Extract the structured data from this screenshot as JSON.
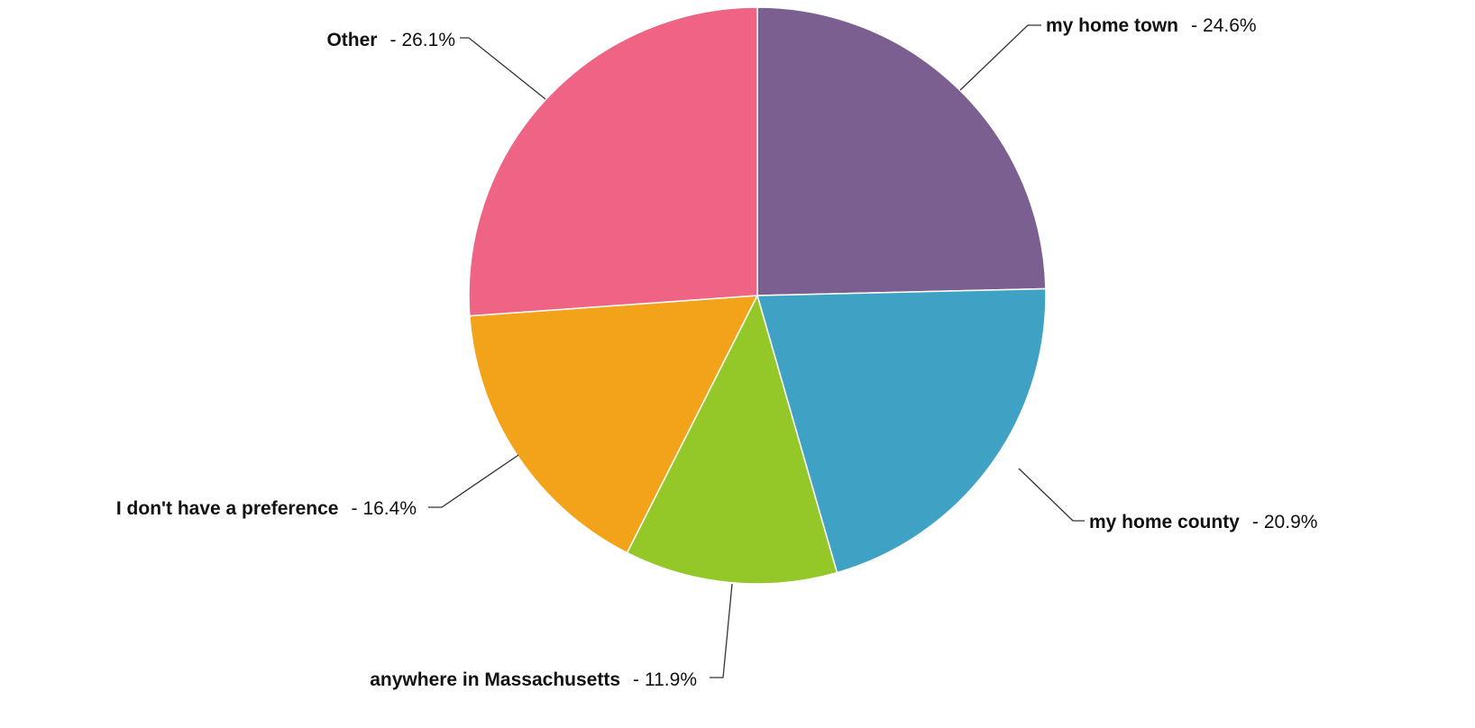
{
  "chart_data": {
    "type": "pie",
    "categories": [
      "my home town",
      "my home county",
      "anywhere in Massachusetts",
      "I don't have a preference",
      "Other"
    ],
    "values": [
      24.6,
      20.9,
      11.9,
      16.4,
      26.1
    ],
    "value_labels": [
      "24.6%",
      "20.9%",
      "11.9%",
      "16.4%",
      "26.1%"
    ],
    "separator": "-",
    "colors": [
      "#7b5f91",
      "#3fa2c4",
      "#94c829",
      "#f3a31a",
      "#ef6384"
    ]
  }
}
